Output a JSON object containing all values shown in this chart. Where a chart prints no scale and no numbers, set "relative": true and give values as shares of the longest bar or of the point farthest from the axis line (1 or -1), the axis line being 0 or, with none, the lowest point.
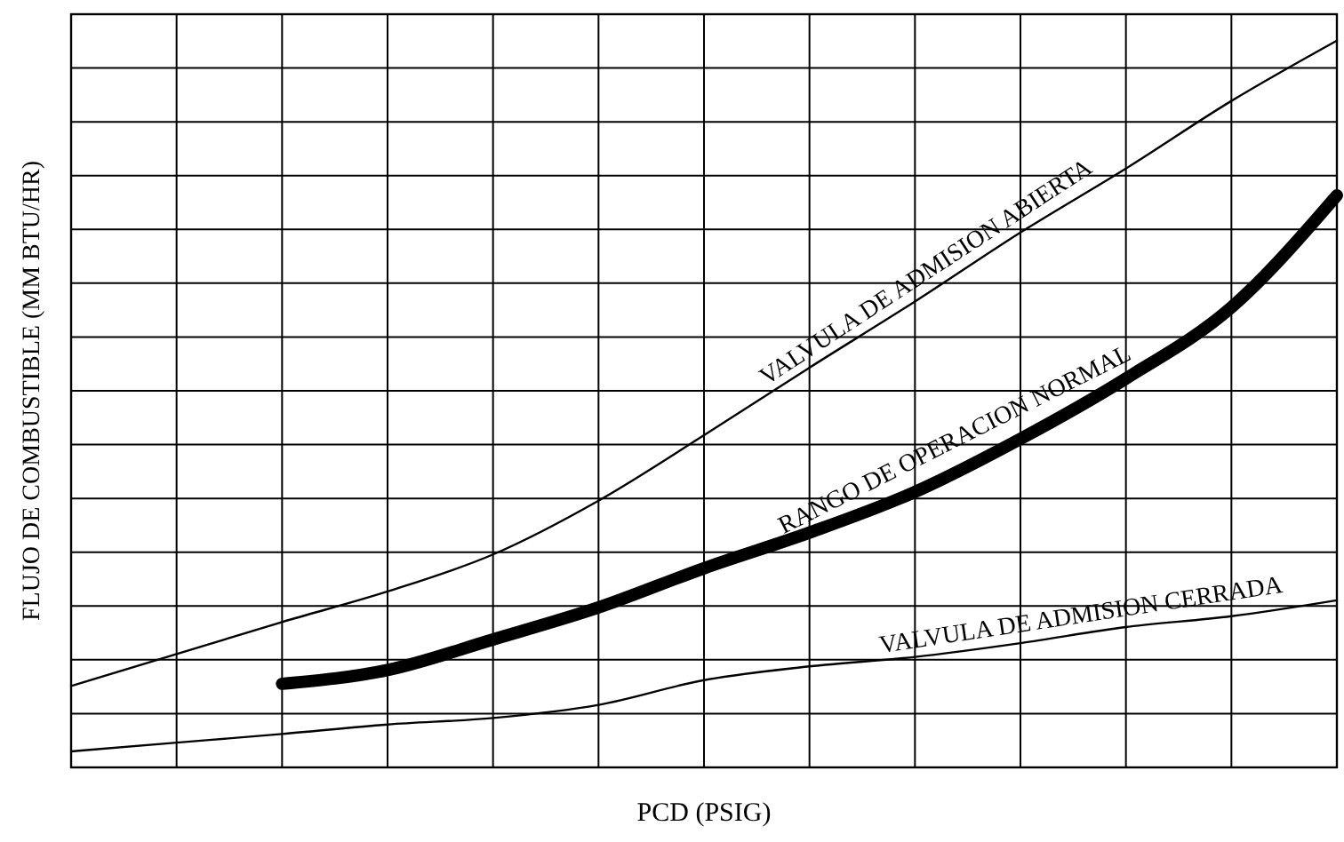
{
  "chart_data": {
    "type": "line",
    "relative": true,
    "xlabel": "PCD (PSIG)",
    "ylabel": "FLUJO DE COMBUSTIBLE (MM BTU/HR)",
    "grid": true,
    "marker": "none",
    "line_style": "solid",
    "categories": [
      null,
      null,
      null,
      null,
      null,
      null,
      null,
      null,
      null,
      null,
      null,
      null,
      null
    ],
    "series": [
      {
        "name": "VALVULA DE ADMISION ABIERTA",
        "color": "#000000",
        "values": [
          0.112,
          0.156,
          0.2,
          0.242,
          0.293,
          0.367,
          0.457,
          0.55,
          0.641,
          0.736,
          0.824,
          0.917,
          1
        ]
      },
      {
        "name": "RANGO DE OPERACION NORMAL",
        "color": "#000000",
        "values": [
          null,
          null,
          0.115,
          0.134,
          0.176,
          0.22,
          0.274,
          0.323,
          0.379,
          0.452,
          0.535,
          0.633,
          0.787
        ]
      },
      {
        "name": "VALVULA DE ADMISION CERRADA",
        "color": "#000000",
        "values": [
          0.022,
          0.034,
          0.046,
          0.059,
          0.068,
          0.086,
          0.12,
          0.139,
          0.152,
          0.171,
          0.193,
          0.208,
          0.23
        ]
      }
    ]
  }
}
